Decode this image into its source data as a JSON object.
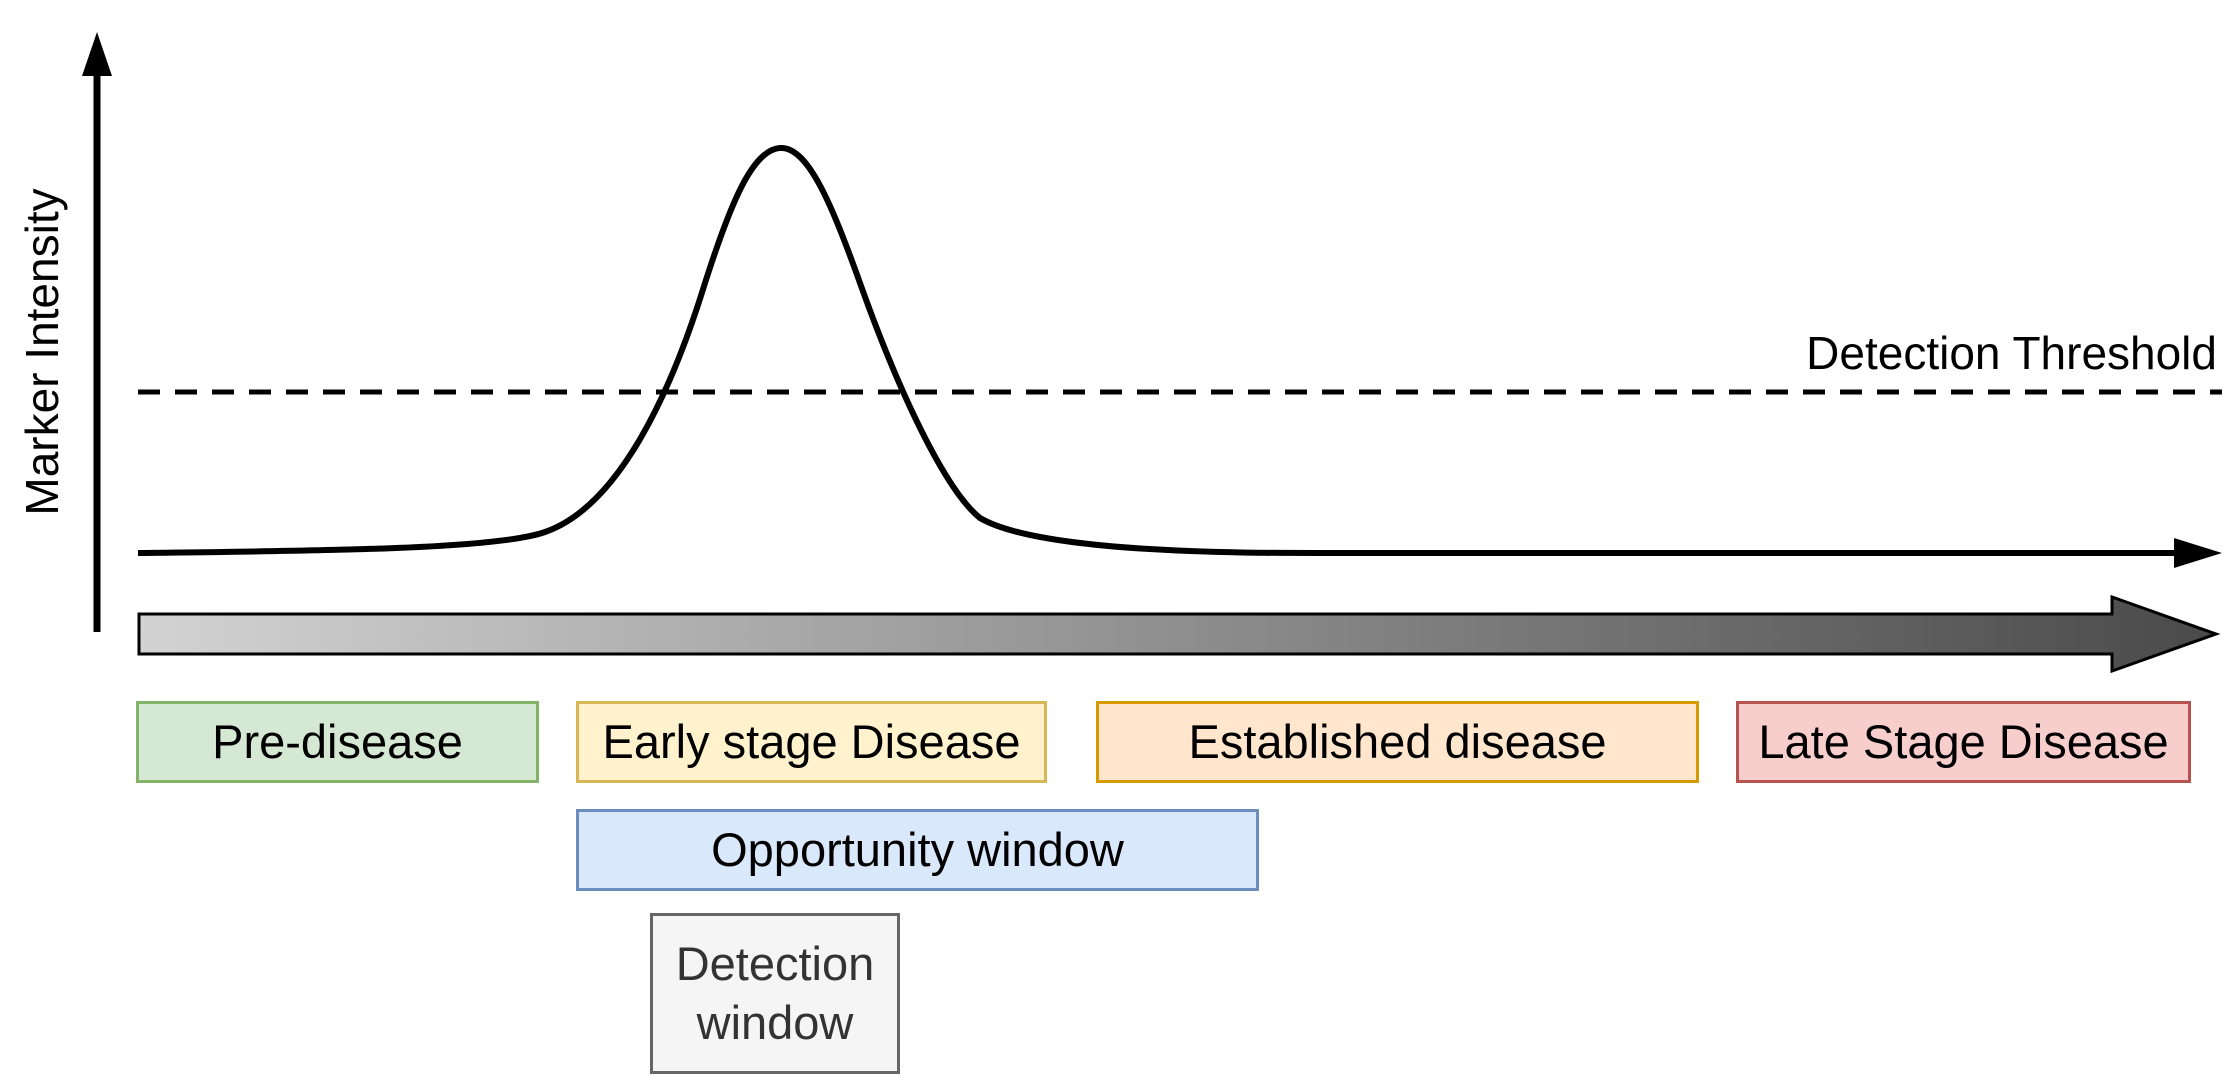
{
  "y_axis_label": "Marker Intensity",
  "threshold_label": "Detection Threshold",
  "stages": [
    {
      "label": "Pre-disease",
      "fill": "#d5e8d4",
      "stroke": "#82b366"
    },
    {
      "label": "Early stage Disease",
      "fill": "#fff2cc",
      "stroke": "#d6b656"
    },
    {
      "label": "Established disease",
      "fill": "#ffe6cc",
      "stroke": "#d79b00"
    },
    {
      "label": "Late Stage Disease",
      "fill": "#f8cecc",
      "stroke": "#b85450"
    }
  ],
  "windows": {
    "opportunity": {
      "label": "Opportunity window",
      "fill": "#dae8fc",
      "stroke": "#6c8ebf"
    },
    "detection": {
      "label": "Detection window",
      "fill": "#f5f5f5",
      "stroke": "#666666",
      "text_color": "#333333"
    }
  },
  "colors": {
    "curve": "#000000",
    "gradient_start": "#d3d3d3",
    "gradient_end": "#4a4a4a"
  }
}
